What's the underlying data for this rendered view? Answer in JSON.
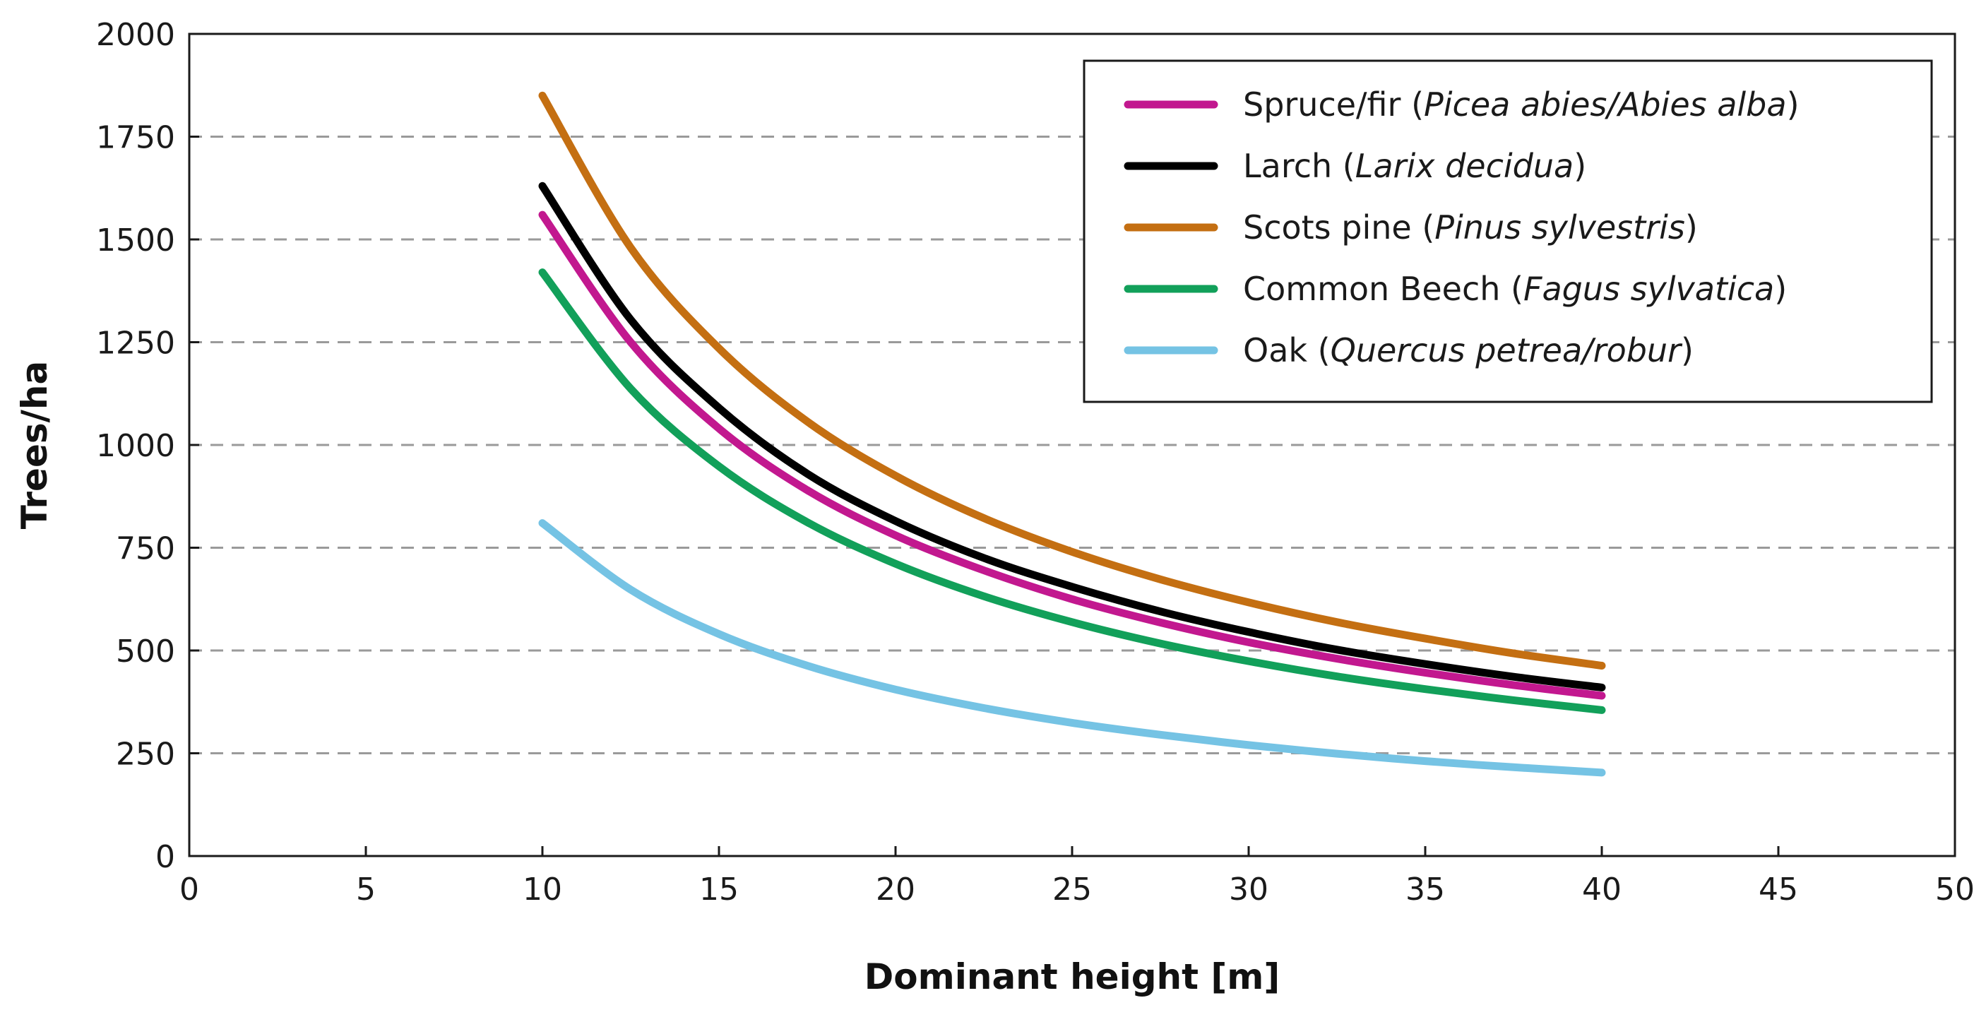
{
  "chart_data": {
    "type": "line",
    "title": "",
    "xlabel": "Dominant height [m]",
    "ylabel": "Trees/ha",
    "xlim": [
      0,
      50
    ],
    "ylim": [
      0,
      2000
    ],
    "xticks": [
      0,
      5,
      10,
      15,
      20,
      25,
      30,
      35,
      40,
      45,
      50
    ],
    "xtick_labels": [
      "0",
      "5",
      "10",
      "15",
      "20",
      "25",
      "30",
      "35",
      "40",
      "45",
      "50"
    ],
    "yticks": [
      0,
      250,
      500,
      750,
      1000,
      1250,
      1500,
      1750,
      2000
    ],
    "ytick_labels": [
      "0",
      "250",
      "500",
      "750",
      "1000",
      "1250",
      "1500",
      "1750",
      "2000"
    ],
    "grid": "horizontal-dashed",
    "legend_position": "top-right",
    "series": [
      {
        "name": "Spruce/fir",
        "latin": "Picea abies/Abies alba",
        "color": "#c2188f",
        "x": [
          10,
          12.5,
          15,
          17.5,
          20,
          22.5,
          25,
          27.5,
          30,
          32.5,
          35,
          37.5,
          40
        ],
        "y": [
          1560,
          1250,
          1040,
          890,
          780,
          695,
          625,
          568,
          520,
          480,
          446,
          416,
          390
        ]
      },
      {
        "name": "Larch",
        "latin": "Larix decidua",
        "color": "#000000",
        "x": [
          10,
          12.5,
          15,
          17.5,
          20,
          22.5,
          25,
          27.5,
          30,
          32.5,
          35,
          37.5,
          40
        ],
        "y": [
          1630,
          1305,
          1090,
          930,
          815,
          725,
          655,
          595,
          545,
          502,
          467,
          436,
          410
        ]
      },
      {
        "name": "Scots pine",
        "latin": "Pinus sylvestris",
        "color": "#c46f12",
        "x": [
          10,
          12.5,
          15,
          17.5,
          20,
          22.5,
          25,
          27.5,
          30,
          32.5,
          35,
          37.5,
          40
        ],
        "y": [
          1850,
          1480,
          1235,
          1057,
          925,
          822,
          740,
          673,
          617,
          569,
          529,
          493,
          463
        ]
      },
      {
        "name": "Common Beech",
        "latin": "Fagus sylvatica",
        "color": "#12a05a",
        "x": [
          10,
          12.5,
          15,
          17.5,
          20,
          22.5,
          25,
          27.5,
          30,
          32.5,
          35,
          37.5,
          40
        ],
        "y": [
          1420,
          1137,
          948,
          812,
          711,
          632,
          569,
          517,
          474,
          437,
          406,
          379,
          355
        ]
      },
      {
        "name": "Oak",
        "latin": "Quercus petrea/robur",
        "color": "#75c3e4",
        "x": [
          10,
          12.5,
          15,
          17.5,
          20,
          22.5,
          25,
          27.5,
          30,
          32.5,
          35,
          37.5,
          40
        ],
        "y": [
          810,
          648,
          540,
          463,
          405,
          360,
          324,
          295,
          270,
          249,
          231,
          216,
          203
        ]
      }
    ]
  }
}
